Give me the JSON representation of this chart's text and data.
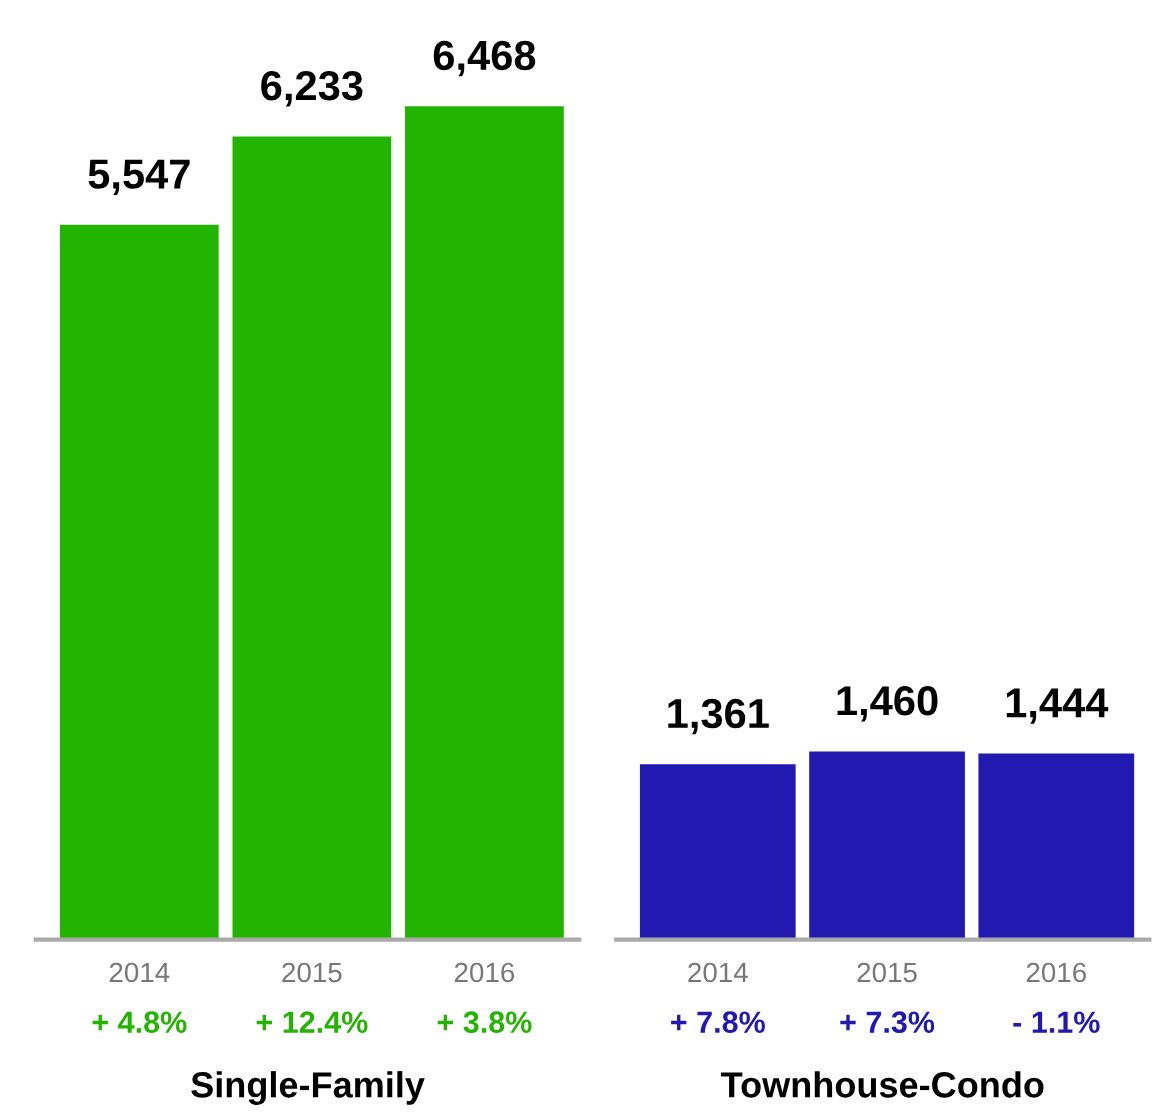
{
  "chart_data": [
    {
      "type": "bar",
      "xlabel": "Single-Family",
      "categories": [
        "2014",
        "2015",
        "2016"
      ],
      "values": [
        5547,
        6233,
        6468
      ],
      "color": "#22b400",
      "value_labels": [
        "5,547",
        "6,233",
        "6,468"
      ],
      "annotations": [
        "+ 4.8%",
        "+ 12.4%",
        "+ 3.8%"
      ]
    },
    {
      "type": "bar",
      "xlabel": "Townhouse-Condo",
      "categories": [
        "2014",
        "2015",
        "2016"
      ],
      "values": [
        1361,
        1460,
        1444
      ],
      "color": "#2219b0",
      "value_labels": [
        "1,361",
        "1,460",
        "1,444"
      ],
      "annotations": [
        "+ 7.8%",
        "+ 7.3%",
        "- 1.1%"
      ]
    }
  ]
}
